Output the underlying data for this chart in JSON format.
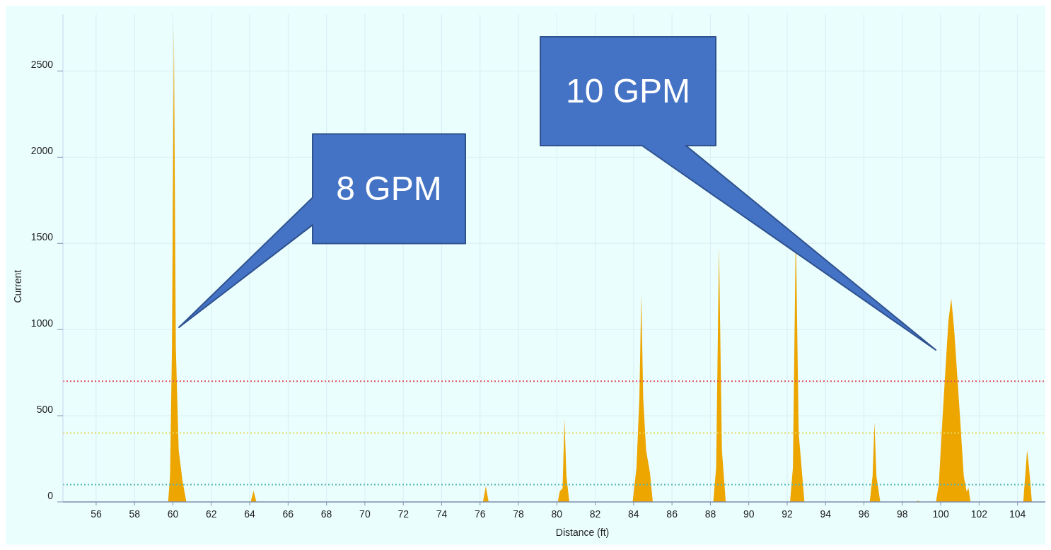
{
  "chart_data": {
    "type": "area",
    "xlabel": "Distance (ft)",
    "ylabel": "Current",
    "x": [
      54.27,
      59.75,
      59.85,
      59.95,
      60.05,
      60.15,
      60.3,
      60.5,
      60.7,
      64.05,
      64.2,
      64.35,
      76.15,
      76.3,
      76.45,
      80.05,
      80.15,
      80.3,
      80.4,
      80.5,
      80.65,
      83.95,
      84.15,
      84.3,
      84.4,
      84.5,
      84.65,
      84.85,
      85.0,
      88.15,
      88.3,
      88.45,
      88.6,
      88.8,
      92.15,
      92.3,
      92.45,
      92.6,
      92.9,
      96.3,
      96.45,
      96.55,
      96.65,
      96.85,
      98.75,
      98.82,
      98.9,
      99.75,
      99.9,
      100.1,
      100.4,
      100.55,
      100.7,
      101.0,
      101.2,
      101.35,
      101.45,
      101.55,
      104.3,
      104.5,
      104.6,
      104.75,
      105.45
    ],
    "series": [
      {
        "color": "#eda500",
        "values": [
          0,
          0,
          150,
          900,
          2750,
          900,
          300,
          120,
          0,
          0,
          65,
          0,
          0,
          90,
          0,
          0,
          60,
          80,
          480,
          150,
          0,
          0,
          200,
          600,
          1200,
          600,
          300,
          170,
          0,
          0,
          200,
          1480,
          300,
          0,
          0,
          200,
          1580,
          400,
          0,
          0,
          150,
          460,
          150,
          0,
          0,
          8,
          0,
          0,
          100,
          500,
          1050,
          1180,
          1000,
          500,
          150,
          60,
          80,
          0,
          0,
          300,
          200,
          0,
          0
        ]
      }
    ],
    "xlim": [
      54.27,
      105.45
    ],
    "xticks": [
      56,
      58,
      60,
      62,
      64,
      66,
      68,
      70,
      72,
      74,
      76,
      78,
      80,
      82,
      84,
      86,
      88,
      90,
      92,
      94,
      96,
      98,
      100,
      102,
      104
    ],
    "ylim": [
      0,
      2830
    ],
    "yticks": [
      0,
      500,
      1000,
      1500,
      2000,
      2500
    ],
    "grid": true,
    "ref_lines": [
      {
        "axis": "y",
        "value": 700,
        "color": "#e05060",
        "line_style": "dotted"
      },
      {
        "axis": "y",
        "value": 400,
        "color": "#e8d860",
        "line_style": "dotted"
      },
      {
        "axis": "y",
        "value": 100,
        "color": "#50b8b0",
        "line_style": "dotted"
      }
    ],
    "annotations": [
      "8 GPM",
      "10 GPM"
    ]
  }
}
